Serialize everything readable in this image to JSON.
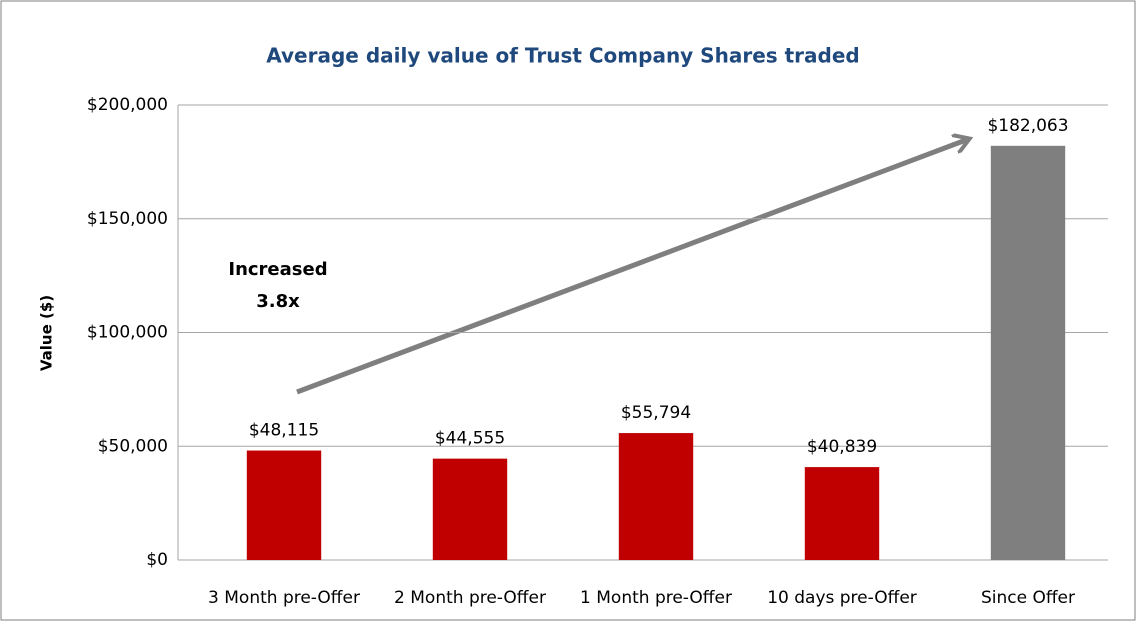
{
  "chart_data": {
    "type": "bar",
    "title": "Average daily value of Trust Company Shares traded",
    "y_label": "Value ($)",
    "annotation": [
      "Increased",
      "3.8x"
    ],
    "categories": [
      "3 Month pre-Offer",
      "2 Month pre-Offer",
      "1 Month pre-Offer",
      "10 days pre-Offer",
      "Since Offer"
    ],
    "values": [
      48115,
      44555,
      55794,
      40839,
      182063
    ],
    "value_labels": [
      "$48,115",
      "$44,555",
      "$55,794",
      "$40,839",
      "$182,063"
    ],
    "colors": [
      "#c00000",
      "#c00000",
      "#c00000",
      "#c00000",
      "#7f7f7f"
    ],
    "ylim": [
      0,
      200000
    ],
    "yticks": [
      {
        "value": 0,
        "label": "$0"
      },
      {
        "value": 50000,
        "label": "$50,000"
      },
      {
        "value": 100000,
        "label": "$100,000"
      },
      {
        "value": 150000,
        "label": "$150,000"
      },
      {
        "value": 200000,
        "label": "$200,000"
      }
    ],
    "grid": true
  }
}
